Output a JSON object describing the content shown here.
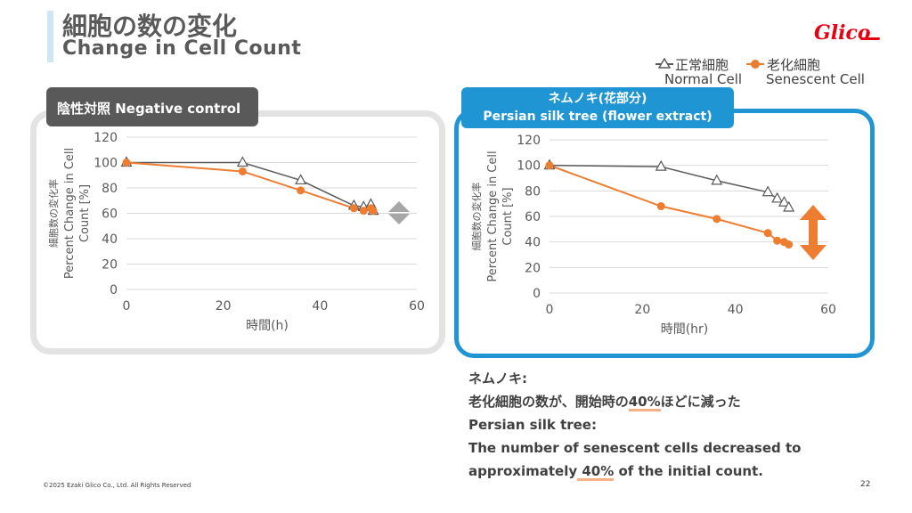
{
  "header": {
    "title_jp": "細胞の数の変化",
    "title_en": "Change in Cell Count",
    "logo_text": "Glico"
  },
  "legend": {
    "normal_jp": "正常細胞",
    "normal_en": "Normal Cell",
    "senescent_jp": "老化細胞",
    "senescent_en": "Senescent Cell"
  },
  "colors": {
    "normal": "#595959",
    "senescent": "#ed7d31",
    "accent_blue": "#1f95d3",
    "arrow_gray": "#a6a6a6"
  },
  "panels": {
    "left": {
      "tab": "陰性対照 Negative control"
    },
    "right": {
      "tab_jp": "ネムノキ(花部分)",
      "tab_en": "Persian silk tree (flower extract)"
    }
  },
  "chart_data": [
    {
      "type": "line",
      "xlabel": "時間(h)",
      "ylabel_jp": "細胞数の変化率",
      "ylabel_en_1": "Percent Change in Cell",
      "ylabel_en_2": "Count [%]",
      "xlim": [
        0,
        60
      ],
      "ylim": [
        0,
        120
      ],
      "xticks": [
        "0",
        "20",
        "40",
        "60"
      ],
      "yticks": [
        "0",
        "20",
        "40",
        "60",
        "80",
        "100",
        "120"
      ],
      "series": [
        {
          "name": "正常細胞 Normal Cell",
          "x": [
            0,
            24,
            36,
            47,
            49,
            50.5,
            51
          ],
          "y": [
            100,
            100,
            86,
            66,
            65,
            67,
            62
          ]
        },
        {
          "name": "老化細胞 Senescent Cell",
          "x": [
            0,
            24,
            36,
            47,
            49,
            50.5,
            51
          ],
          "y": [
            100,
            93,
            78,
            64,
            62,
            64,
            62
          ]
        }
      ]
    },
    {
      "type": "line",
      "xlabel": "時間(hr)",
      "ylabel_jp": "細胞数の変化率",
      "ylabel_en_1": "Percent Change in Cell",
      "ylabel_en_2": "Count [%]",
      "xlim": [
        0,
        60
      ],
      "ylim": [
        0,
        120
      ],
      "xticks": [
        "0",
        "20",
        "40",
        "60"
      ],
      "yticks": [
        "0",
        "20",
        "40",
        "60",
        "80",
        "100",
        "120"
      ],
      "series": [
        {
          "name": "正常細胞 Normal Cell",
          "x": [
            0,
            24,
            36,
            47,
            49,
            50.5,
            51.5
          ],
          "y": [
            100,
            99,
            88,
            79,
            74,
            71,
            67
          ]
        },
        {
          "name": "老化細胞 Senescent Cell",
          "x": [
            0,
            24,
            36,
            47,
            49,
            50.5,
            51.5
          ],
          "y": [
            100,
            68,
            58,
            47,
            41,
            40,
            38
          ]
        }
      ]
    }
  ],
  "summary": {
    "line1": "ネムノキ:",
    "line2_pre": "老化細胞の数が、開始時の",
    "line2_hl": "40%",
    "line2_post": "ほどに減った",
    "line3": "Persian silk tree:",
    "line4": "The number of senescent cells decreased to",
    "line5_pre": "approximately",
    "line5_hl": " 40%",
    "line5_post": " of the initial count."
  },
  "footer": {
    "copyright": "©2025 Ezaki Glico Co., Ltd. All Rights Reserved",
    "page": "22"
  }
}
